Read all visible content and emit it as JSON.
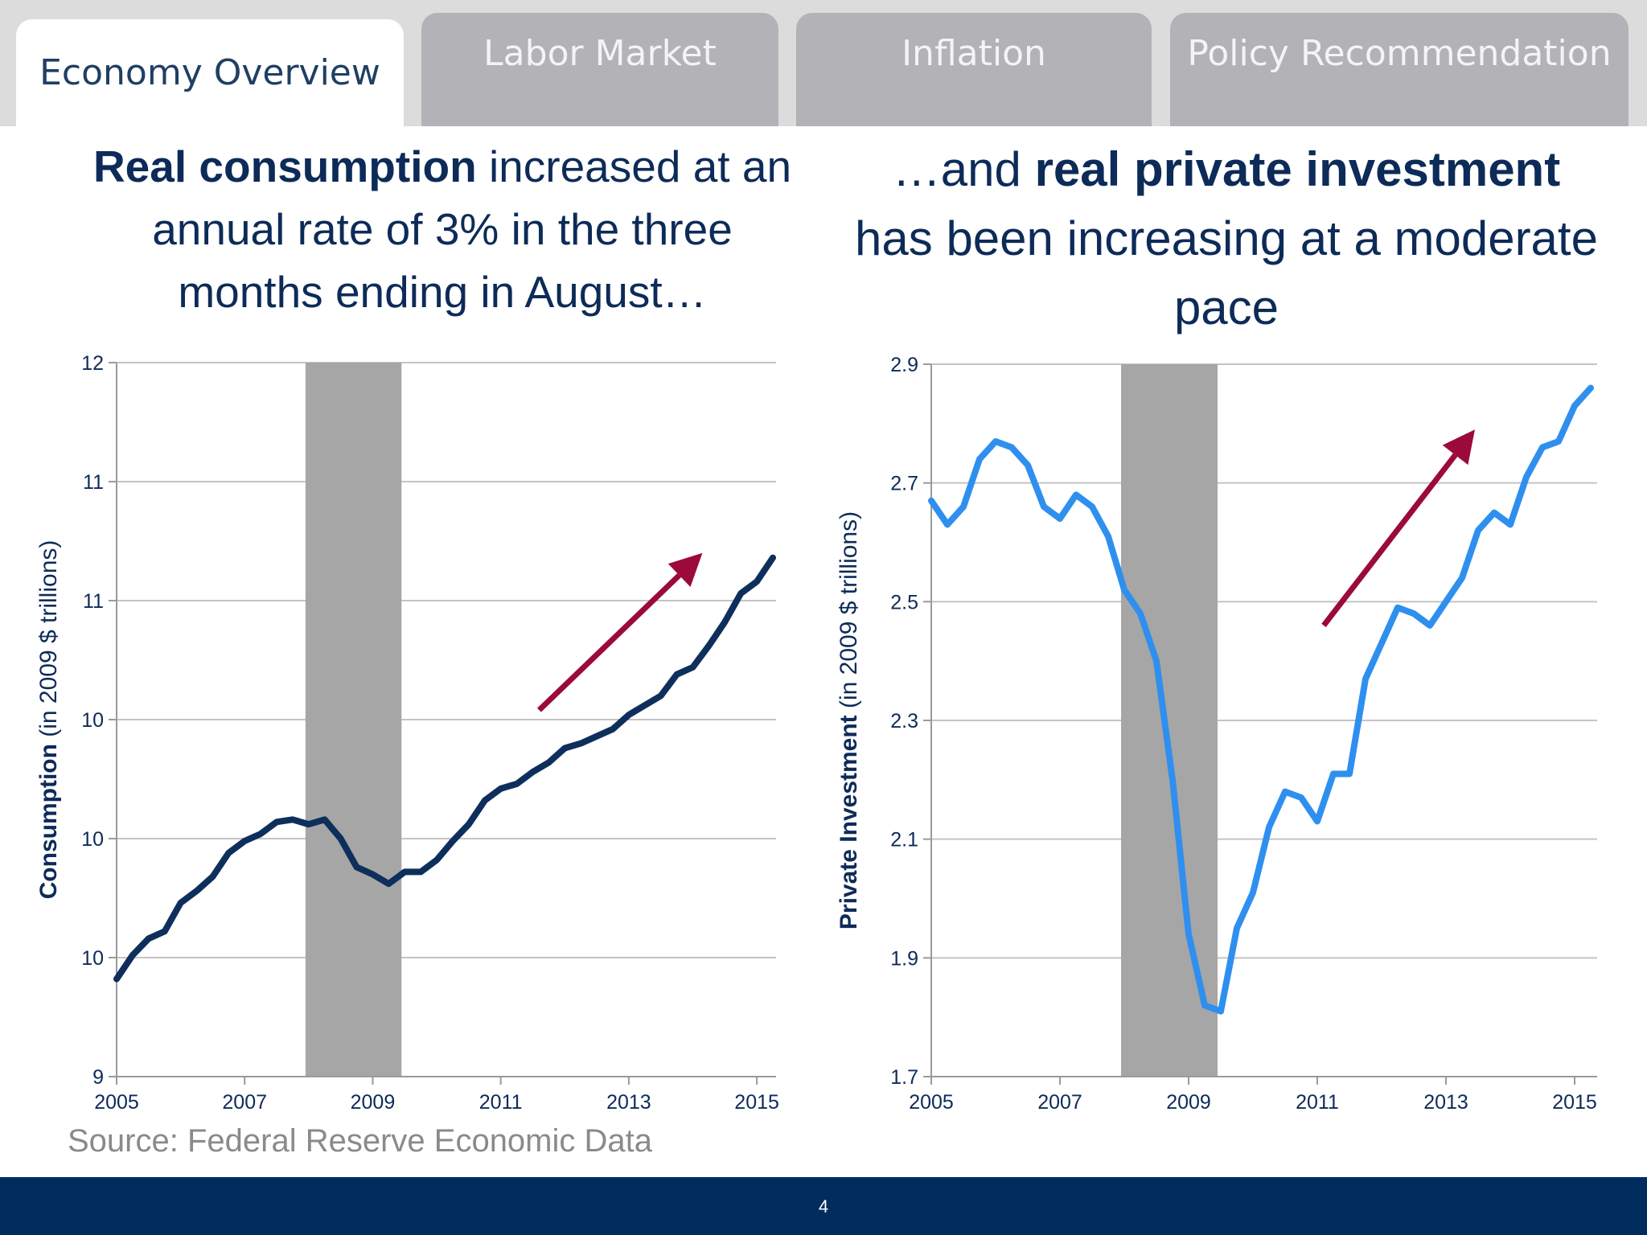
{
  "tabs": [
    {
      "label": "Economy Overview",
      "active": true
    },
    {
      "label": "Labor Market",
      "active": false
    },
    {
      "label": "Inflation",
      "active": false
    },
    {
      "label": "Policy Recommendation",
      "active": false
    }
  ],
  "left_headline": {
    "bold": "Real consumption",
    "rest": " increased at an annual rate of 3% in the three months ending in August…"
  },
  "right_headline": {
    "lead": "…and ",
    "bold": "real private investment",
    "rest": " has been increasing at a moderate pace"
  },
  "source": "Source: Federal Reserve Economic Data",
  "page_number": "4",
  "colors": {
    "navy": "#0d2b58",
    "consumption_line": "#0e2f5c",
    "investment_line": "#2f8fef",
    "recession_band": "#a6a6a6",
    "arrow": "#9b0a3a",
    "footer": "#002c5e"
  },
  "chart_data": [
    {
      "type": "line",
      "title": "",
      "xlabel": "",
      "ylabel_bold": "Consumption",
      "ylabel_rest": " (in 2009 $ trillions)",
      "ylim": [
        9,
        12
      ],
      "ytick_values": [
        9,
        9.5,
        10,
        10.5,
        11,
        11.5,
        12
      ],
      "ytick_labels": [
        "9",
        "10",
        "10",
        "10",
        "11",
        "11",
        "12"
      ],
      "xlim": [
        2005,
        2015.3
      ],
      "xtick_values": [
        2005,
        2007,
        2009,
        2011,
        2013,
        2015
      ],
      "xtick_labels": [
        "2005",
        "2007",
        "2009",
        "2011",
        "2013",
        "2015"
      ],
      "grid": true,
      "recession": [
        2007.95,
        2009.45
      ],
      "trend_arrow": {
        "from": [
          2011.6,
          10.54
        ],
        "to": [
          2014.15,
          11.2
        ]
      },
      "series": [
        {
          "x": [
            2005.0,
            2005.25,
            2005.5,
            2005.75,
            2006.0,
            2006.25,
            2006.5,
            2006.75,
            2007.0,
            2007.25,
            2007.5,
            2007.75,
            2008.0,
            2008.25,
            2008.5,
            2008.75,
            2009.0,
            2009.25,
            2009.5,
            2009.75,
            2010.0,
            2010.25,
            2010.5,
            2010.75,
            2011.0,
            2011.25,
            2011.5,
            2011.75,
            2012.0,
            2012.25,
            2012.5,
            2012.75,
            2013.0,
            2013.25,
            2013.5,
            2013.75,
            2014.0,
            2014.25,
            2014.5,
            2014.75,
            2015.0,
            2015.25
          ],
          "values": [
            9.41,
            9.51,
            9.58,
            9.61,
            9.73,
            9.78,
            9.84,
            9.94,
            9.99,
            10.02,
            10.07,
            10.08,
            10.06,
            10.08,
            10.0,
            9.88,
            9.85,
            9.81,
            9.86,
            9.86,
            9.91,
            9.99,
            10.06,
            10.16,
            10.21,
            10.23,
            10.28,
            10.32,
            10.38,
            10.4,
            10.43,
            10.46,
            10.52,
            10.56,
            10.6,
            10.69,
            10.72,
            10.81,
            10.91,
            11.03,
            11.08,
            11.18
          ]
        }
      ]
    },
    {
      "type": "line",
      "title": "",
      "xlabel": "",
      "ylabel_bold": "Private Investment",
      "ylabel_rest": " (in 2009 $ trillions)",
      "ylim": [
        1.7,
        2.9
      ],
      "ytick_values": [
        1.7,
        1.9,
        2.1,
        2.3,
        2.5,
        2.7,
        2.9
      ],
      "ytick_labels": [
        "1.7",
        "1.9",
        "2.1",
        "2.3",
        "2.5",
        "2.7",
        "2.9"
      ],
      "xlim": [
        2005,
        2015.35
      ],
      "xtick_values": [
        2005,
        2007,
        2009,
        2011,
        2013,
        2015
      ],
      "xtick_labels": [
        "2005",
        "2007",
        "2009",
        "2011",
        "2013",
        "2015"
      ],
      "grid": true,
      "recession": [
        2007.95,
        2009.45
      ],
      "trend_arrow": {
        "from": [
          2011.1,
          2.46
        ],
        "to": [
          2013.45,
          2.79
        ]
      },
      "series": [
        {
          "x": [
            2005.0,
            2005.25,
            2005.5,
            2005.75,
            2006.0,
            2006.25,
            2006.5,
            2006.75,
            2007.0,
            2007.25,
            2007.5,
            2007.75,
            2008.0,
            2008.25,
            2008.5,
            2008.75,
            2009.0,
            2009.25,
            2009.5,
            2009.75,
            2010.0,
            2010.25,
            2010.5,
            2010.75,
            2011.0,
            2011.25,
            2011.5,
            2011.75,
            2012.0,
            2012.25,
            2012.5,
            2012.75,
            2013.0,
            2013.25,
            2013.5,
            2013.75,
            2014.0,
            2014.25,
            2014.5,
            2014.75,
            2015.0,
            2015.25
          ],
          "values": [
            2.67,
            2.63,
            2.66,
            2.74,
            2.77,
            2.76,
            2.73,
            2.66,
            2.64,
            2.68,
            2.66,
            2.61,
            2.52,
            2.48,
            2.4,
            2.2,
            1.94,
            1.82,
            1.81,
            1.95,
            2.01,
            2.12,
            2.18,
            2.17,
            2.13,
            2.21,
            2.21,
            2.37,
            2.43,
            2.49,
            2.48,
            2.46,
            2.5,
            2.54,
            2.62,
            2.65,
            2.63,
            2.71,
            2.76,
            2.77,
            2.83,
            2.86
          ]
        }
      ]
    }
  ]
}
